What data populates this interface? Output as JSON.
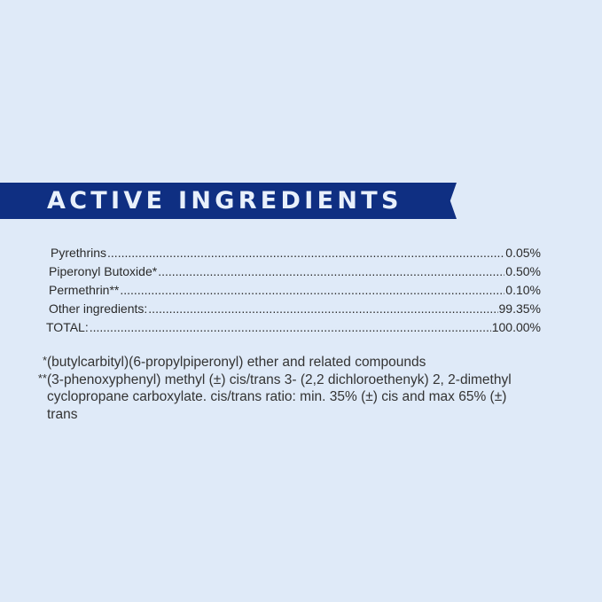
{
  "banner": {
    "title": "ACTIVE INGREDIENTS",
    "color": "#0f2f82"
  },
  "ingredients": [
    {
      "name": "Pyrethrins",
      "value": "0.05%"
    },
    {
      "name": "Piperonyl Butoxide*",
      "value": "0.50%"
    },
    {
      "name": "Permethrin**",
      "value": "0.10%"
    },
    {
      "name": "Other ingredients:",
      "value": "99.35%"
    },
    {
      "name": "TOTAL:",
      "value": "100.00%"
    }
  ],
  "footnotes": [
    {
      "mark": "*",
      "text": "(butylcarbityl)(6-propylpiperonyl) ether and related compounds"
    },
    {
      "mark": "**",
      "text": "(3-phenoxyphenyl) methyl (±) cis/trans 3- (2,2 dichloroethenyk) 2, 2-dimethyl cyclopropane carboxylate. cis/trans ratio: min. 35% (±) cis and max 65% (±) trans"
    }
  ]
}
